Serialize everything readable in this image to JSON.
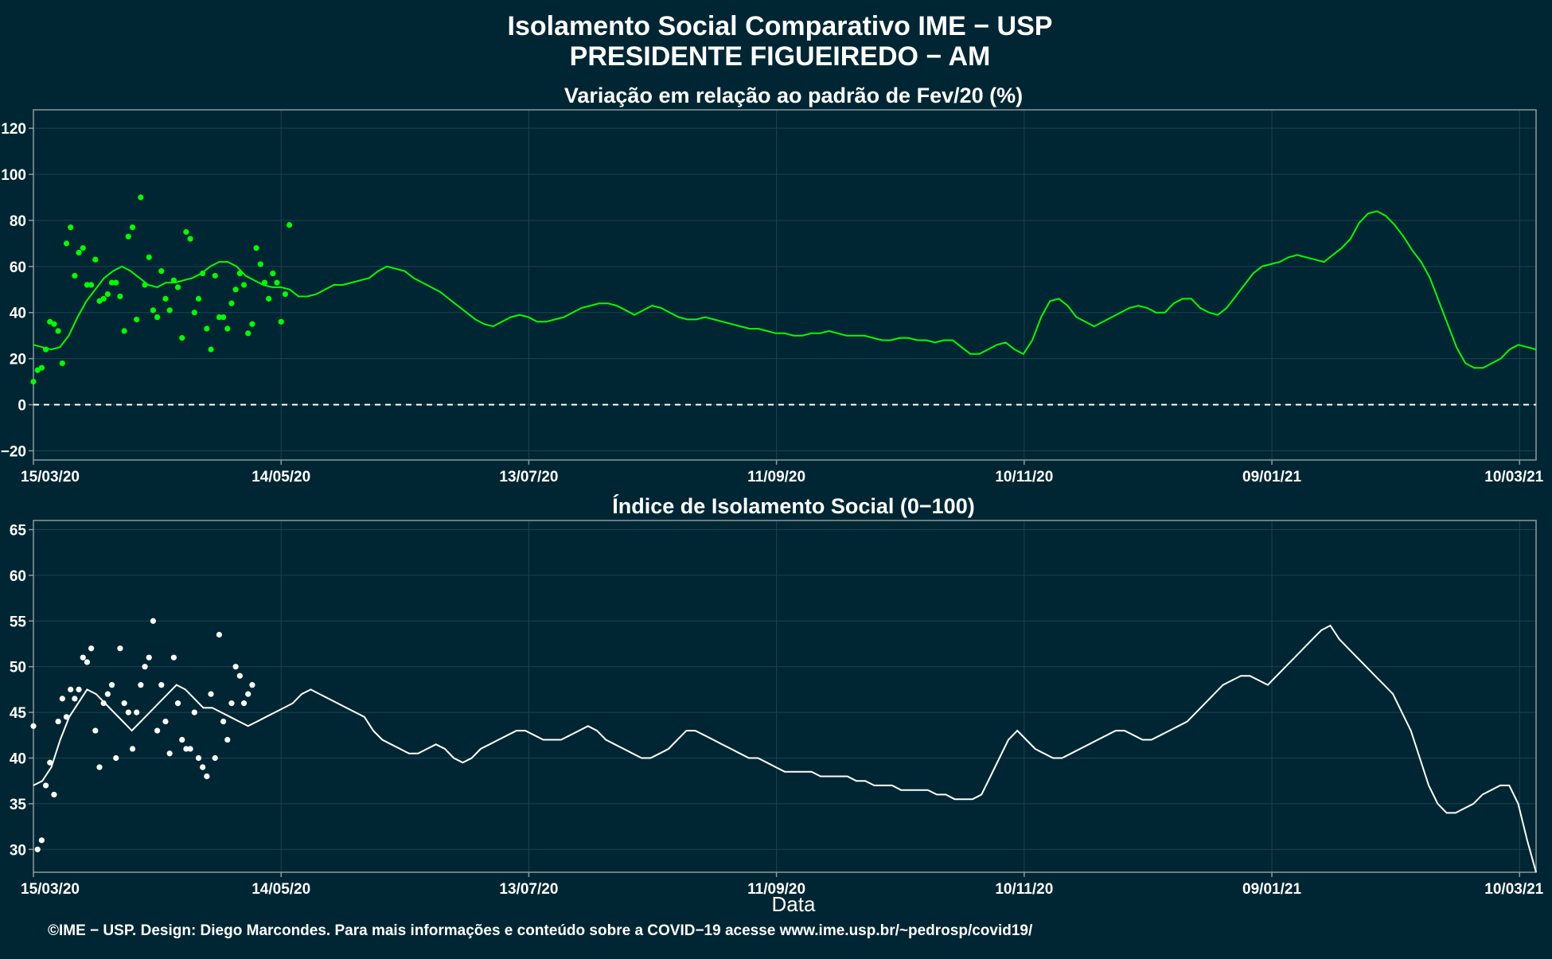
{
  "header": {
    "title_line1": "Isolamento Social Comparativo IME − USP",
    "title_line2": "PRESIDENTE FIGUEIREDO − AM"
  },
  "footer": {
    "credit": "©IME − USP. Design: Diego Marcondes. Para mais informações e conteúdo sobre a COVID−19 acesse www.ime.usp.br/~pedrosp/covid19/"
  },
  "colors": {
    "background": "#002633",
    "panel_border": "#8a9aa0",
    "grid": "#1c4350",
    "variation_positive": "#00ff00",
    "variation_negative": "#ff0000",
    "index_series": "#ffffff"
  },
  "chart_data": [
    {
      "type": "scatter",
      "title": "Variação em relação ao padrão de Fev/20 (%)",
      "xlabel": "",
      "ylabel": "",
      "x_start": "2020-03-15",
      "x_end": "2021-03-14",
      "x_ticks": [
        "15/03/20",
        "14/05/20",
        "13/07/20",
        "11/09/20",
        "10/11/20",
        "09/01/21",
        "10/03/21"
      ],
      "ylim": [
        -24,
        128
      ],
      "y_ticks": [
        -20,
        0,
        20,
        40,
        60,
        80,
        100,
        120
      ],
      "reference_line": 0,
      "grid": true,
      "series": [
        {
          "kind": "points",
          "values": [
            10,
            15,
            16,
            24,
            36,
            35,
            32,
            18,
            70,
            77,
            56,
            66,
            68,
            52,
            52,
            63,
            45,
            46,
            48,
            53,
            53,
            47,
            32,
            73,
            77,
            37,
            90,
            52,
            64,
            41,
            38,
            58,
            46,
            41,
            54,
            51,
            29,
            75,
            72,
            40,
            46,
            57,
            33,
            24,
            56,
            38,
            38,
            33,
            44,
            50,
            57,
            52,
            31,
            35,
            68,
            61,
            53,
            46,
            57,
            53,
            36,
            48,
            78
          ],
          "note": "daily dots (x = successive days from 15/03/20); dots below 0 drawn in red"
        },
        {
          "kind": "line",
          "name": "média móvel 7 dias",
          "values": [
            26,
            25,
            24,
            25,
            30,
            38,
            45,
            50,
            55,
            58,
            60,
            58,
            55,
            52,
            51,
            53,
            53,
            54,
            55,
            57,
            60,
            62,
            62,
            60,
            56,
            54,
            52,
            51,
            51,
            50,
            47,
            47,
            48,
            50,
            52,
            52,
            53,
            54,
            55,
            58,
            60,
            59,
            58,
            55,
            53,
            51,
            49,
            46,
            43,
            40,
            37,
            35,
            34,
            36,
            38,
            39,
            38,
            36,
            36,
            37,
            38,
            40,
            42,
            43,
            44,
            44,
            43,
            41,
            39,
            41,
            43,
            42,
            40,
            38,
            37,
            37,
            38,
            37,
            36,
            35,
            34,
            33,
            33,
            32,
            31,
            31,
            30,
            30,
            31,
            31,
            32,
            31,
            30,
            30,
            30,
            29,
            28,
            28,
            29,
            29,
            28,
            28,
            27,
            28,
            28,
            25,
            22,
            22,
            24,
            26,
            27,
            24,
            22,
            28,
            38,
            45,
            46,
            43,
            38,
            36,
            34,
            36,
            38,
            40,
            42,
            43,
            42,
            40,
            40,
            44,
            46,
            46,
            42,
            40,
            39,
            42,
            47,
            52,
            57,
            60,
            61,
            62,
            64,
            65,
            64,
            63,
            62,
            65,
            68,
            72,
            79,
            83,
            84,
            82,
            78,
            73,
            67,
            62,
            55,
            45,
            35,
            25,
            18,
            16,
            16,
            18,
            20,
            24,
            26,
            25,
            24
          ]
        }
      ]
    },
    {
      "type": "scatter",
      "title": "Índice de Isolamento Social (0−100)",
      "xlabel": "Data",
      "ylabel": "",
      "x_start": "2020-03-15",
      "x_end": "2021-03-14",
      "x_ticks": [
        "15/03/20",
        "14/05/20",
        "13/07/20",
        "11/09/20",
        "10/11/20",
        "09/01/21",
        "10/03/21"
      ],
      "ylim": [
        27.5,
        66
      ],
      "y_ticks": [
        30,
        35,
        40,
        45,
        50,
        55,
        60,
        65
      ],
      "grid": true,
      "series": [
        {
          "kind": "points",
          "values": [
            43.5,
            30,
            31,
            37,
            39.5,
            36,
            44,
            46.5,
            44.5,
            47.5,
            46.5,
            47.5,
            51,
            50.5,
            52,
            43,
            39,
            46,
            47,
            48,
            40,
            52,
            46,
            45,
            41,
            45,
            48,
            50,
            51,
            55,
            43,
            48,
            44,
            40.5,
            51,
            46,
            42,
            41,
            41,
            45,
            40,
            39,
            38,
            47,
            40,
            53.5,
            44,
            42,
            46,
            50,
            49,
            46,
            47,
            48
          ],
          "note": "daily dots (x = successive days from 15/03/20)"
        },
        {
          "kind": "line",
          "name": "média móvel 7 dias",
          "values": [
            37,
            37.5,
            39,
            42,
            44.5,
            46,
            47.5,
            47,
            46,
            45,
            44,
            43,
            44,
            45,
            46,
            47,
            48,
            47.5,
            46.5,
            45.5,
            45.5,
            45,
            44.5,
            44,
            43.5,
            44,
            44.5,
            45,
            45.5,
            46,
            47,
            47.5,
            47,
            46.5,
            46,
            45.5,
            45,
            44.5,
            43,
            42,
            41.5,
            41,
            40.5,
            40.5,
            41,
            41.5,
            41,
            40,
            39.5,
            40,
            41,
            41.5,
            42,
            42.5,
            43,
            43,
            42.5,
            42,
            42,
            42,
            42.5,
            43,
            43.5,
            43,
            42,
            41.5,
            41,
            40.5,
            40,
            40,
            40.5,
            41,
            42,
            43,
            43,
            42.5,
            42,
            41.5,
            41,
            40.5,
            40,
            40,
            39.5,
            39,
            38.5,
            38.5,
            38.5,
            38.5,
            38,
            38,
            38,
            38,
            37.5,
            37.5,
            37,
            37,
            37,
            36.5,
            36.5,
            36.5,
            36.5,
            36,
            36,
            35.5,
            35.5,
            35.5,
            36,
            38,
            40,
            42,
            43,
            42,
            41,
            40.5,
            40,
            40,
            40.5,
            41,
            41.5,
            42,
            42.5,
            43,
            43,
            42.5,
            42,
            42,
            42.5,
            43,
            43.5,
            44,
            45,
            46,
            47,
            48,
            48.5,
            49,
            49,
            48.5,
            48,
            49,
            50,
            51,
            52,
            53,
            54,
            54.5,
            53,
            52,
            51,
            50,
            49,
            48,
            47,
            45,
            43,
            40,
            37,
            35,
            34,
            34,
            34.5,
            35,
            36,
            36.5,
            37,
            37,
            35,
            31,
            27.5
          ]
        }
      ]
    }
  ]
}
